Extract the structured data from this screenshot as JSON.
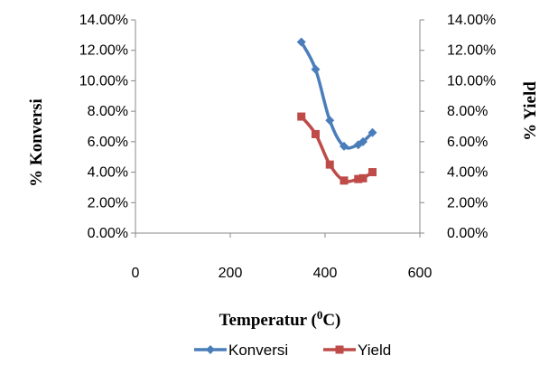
{
  "chart_data": {
    "type": "line",
    "xlabel": "Temperatur (",
    "xlabel_sup": "0",
    "xlabel_unit": "C)",
    "ylabel": "% Konversi",
    "y2label": "% Yield",
    "xlim": [
      0,
      600
    ],
    "ylim": [
      0,
      0.14
    ],
    "y2lim": [
      0,
      0.14
    ],
    "x_ticks": [
      "0",
      "200",
      "400",
      "600"
    ],
    "y_ticks": [
      "0.00%",
      "2.00%",
      "4.00%",
      "6.00%",
      "8.00%",
      "10.00%",
      "12.00%",
      "14.00%"
    ],
    "y2_ticks": [
      "0.00%",
      "2.00%",
      "4.00%",
      "6.00%",
      "8.00%",
      "10.00%",
      "12.00%",
      "14.00%"
    ],
    "grid": false,
    "legend_position": "bottom",
    "series": [
      {
        "name": "Konversi",
        "axis": "left",
        "color": "#4a7ebb",
        "marker": "diamond",
        "x": [
          350,
          380,
          410,
          440,
          470,
          480,
          500
        ],
        "y": [
          0.1255,
          0.1075,
          0.074,
          0.057,
          0.058,
          0.06,
          0.066
        ]
      },
      {
        "name": "Yield",
        "axis": "right",
        "color": "#be4b48",
        "marker": "square",
        "x": [
          350,
          380,
          410,
          440,
          470,
          480,
          500
        ],
        "y": [
          0.0765,
          0.065,
          0.045,
          0.0345,
          0.0355,
          0.036,
          0.04
        ]
      }
    ]
  }
}
